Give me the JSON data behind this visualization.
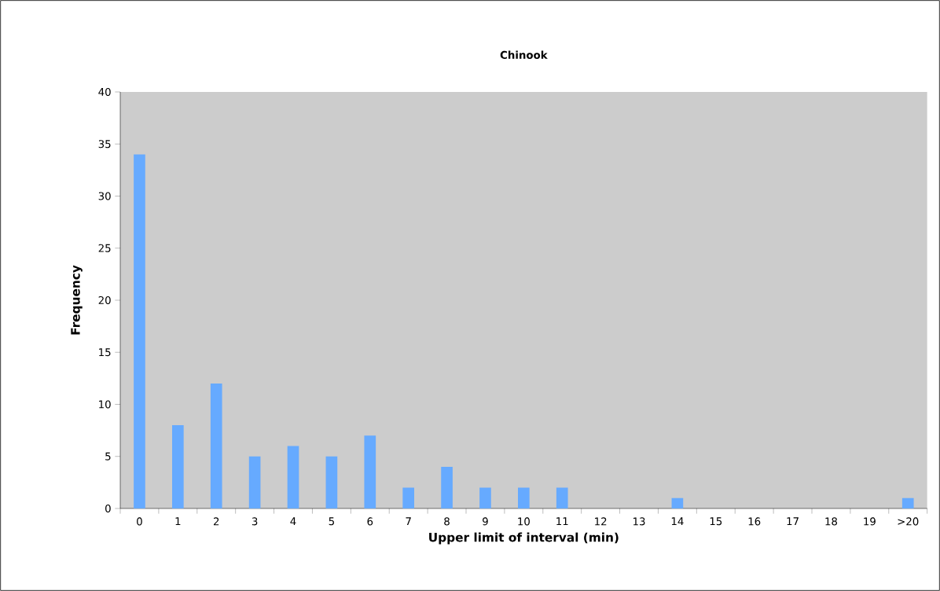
{
  "chart_data": {
    "type": "bar",
    "title": "Chinook",
    "xlabel": "Upper limit of interval (min)",
    "ylabel": "Frequency",
    "categories": [
      "0",
      "1",
      "2",
      "3",
      "4",
      "5",
      "6",
      "7",
      "8",
      "9",
      "10",
      "11",
      "12",
      "13",
      "14",
      "15",
      "16",
      "17",
      "18",
      "19",
      ">20"
    ],
    "values": [
      34,
      8,
      12,
      5,
      6,
      5,
      7,
      2,
      4,
      2,
      2,
      2,
      0,
      0,
      1,
      0,
      0,
      0,
      0,
      0,
      1
    ],
    "color": "#66aaff",
    "ylim": [
      0,
      40
    ],
    "yticks": [
      0,
      5,
      10,
      15,
      20,
      25,
      30,
      35,
      40
    ]
  }
}
